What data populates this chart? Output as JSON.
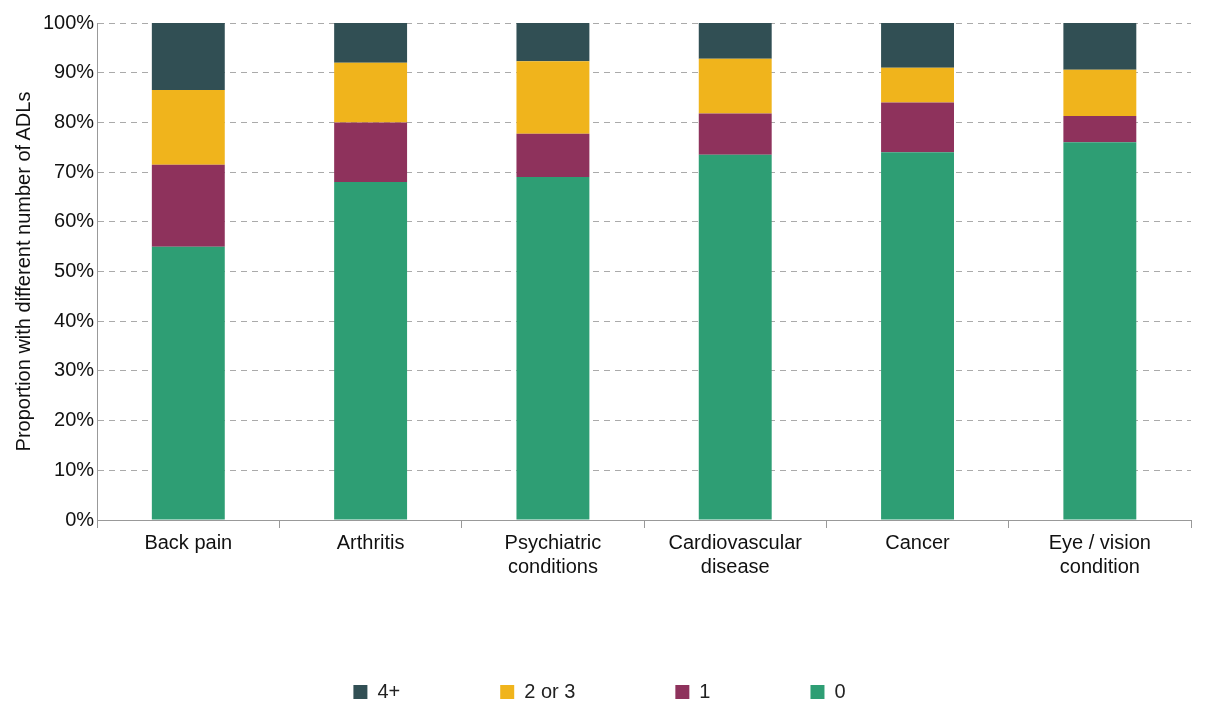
{
  "chart_data": {
    "type": "bar",
    "stacked": true,
    "ylabel": "Proportion with different number of ADLs",
    "categories": [
      "Back pain",
      "Arthritis",
      "Psychiatric conditions",
      "Cardiovascular disease",
      "Cancer",
      "Eye / vision condition"
    ],
    "series": [
      {
        "name": "0",
        "color": "#2e9e74",
        "values": [
          55,
          68,
          69,
          73.5,
          74,
          76
        ]
      },
      {
        "name": "1",
        "color": "#8e325c",
        "values": [
          16.5,
          12,
          8.7,
          8.3,
          10,
          5.3
        ]
      },
      {
        "name": "2 or 3",
        "color": "#f0b41c",
        "values": [
          15,
          12,
          14.6,
          11,
          7,
          9.3
        ]
      },
      {
        "name": "4+",
        "color": "#314f54",
        "values": [
          13.5,
          8,
          7.7,
          7.2,
          9,
          9.4
        ]
      }
    ],
    "ylim": [
      0,
      100
    ],
    "yticks": [
      {
        "value": 0,
        "label": "0%"
      },
      {
        "value": 10,
        "label": "10%"
      },
      {
        "value": 20,
        "label": "20%"
      },
      {
        "value": 30,
        "label": "30%"
      },
      {
        "value": 40,
        "label": "40%"
      },
      {
        "value": 50,
        "label": "50%"
      },
      {
        "value": 60,
        "label": "60%"
      },
      {
        "value": 70,
        "label": "70%"
      },
      {
        "value": 80,
        "label": "80%"
      },
      {
        "value": 90,
        "label": "90%"
      },
      {
        "value": 100,
        "label": "100%"
      }
    ],
    "grid": "y",
    "legend": "bottom"
  }
}
